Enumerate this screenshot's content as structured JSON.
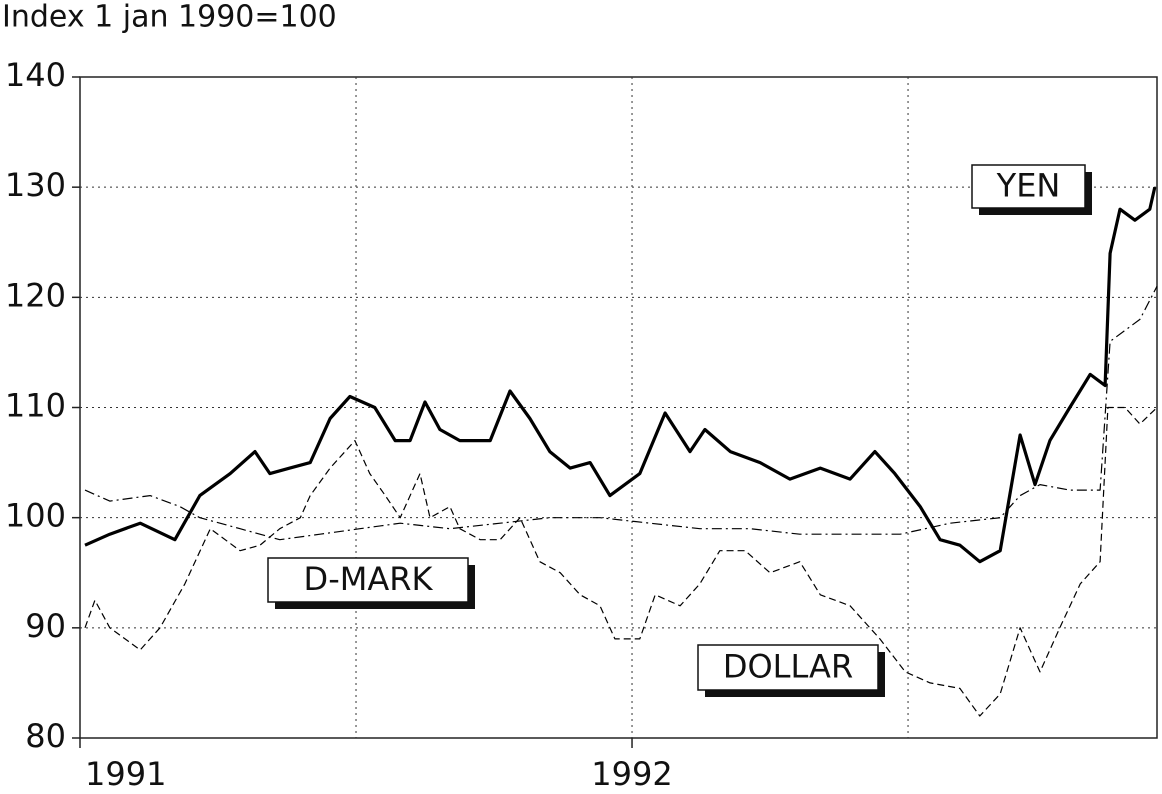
{
  "chart_data": {
    "type": "line",
    "title": "Index 1 jan 1990=100",
    "xlim": [
      1991,
      1992.951
    ],
    "xticks": [
      1991,
      1992
    ],
    "x_gridlines": [
      1991.5,
      1992,
      1992.5
    ],
    "ylim": [
      80,
      140
    ],
    "yticks": [
      80,
      90,
      100,
      110,
      120,
      130,
      140
    ],
    "grid": true,
    "series": [
      {
        "name": "YEN",
        "color": "#000000",
        "style": "thick",
        "x": [
          1991.009,
          1991.054,
          1991.109,
          1991.172,
          1991.217,
          1991.272,
          1991.317,
          1991.344,
          1991.38,
          1991.417,
          1991.453,
          1991.489,
          1991.534,
          1991.571,
          1991.598,
          1991.625,
          1991.652,
          1991.688,
          1991.743,
          1991.779,
          1991.815,
          1991.851,
          1991.888,
          1991.924,
          1991.96,
          1992.014,
          1992.06,
          1992.105,
          1992.132,
          1992.178,
          1992.232,
          1992.286,
          1992.341,
          1992.395,
          1992.44,
          1992.476,
          1992.522,
          1992.558,
          1992.594,
          1992.63,
          1992.667,
          1992.703,
          1992.73,
          1992.757,
          1992.793,
          1992.83,
          1992.857,
          1992.866,
          1992.884,
          1992.911,
          1992.938,
          1992.947
        ],
        "values": [
          97.5,
          98.5,
          99.5,
          98,
          102,
          104,
          106,
          104,
          104.5,
          105,
          109,
          111,
          110,
          107,
          107,
          110.5,
          108,
          107,
          107,
          111.5,
          109,
          106,
          104.5,
          105,
          102,
          104,
          109.5,
          106,
          108,
          106,
          105,
          103.5,
          104.5,
          103.5,
          106,
          104,
          101,
          98,
          97.5,
          96,
          97,
          107.5,
          103,
          107,
          110,
          113,
          112,
          124,
          128,
          127,
          128,
          130
        ]
      },
      {
        "name": "D-MARK",
        "color": "#000000",
        "style": "dashdot",
        "x": [
          1991.009,
          1991.054,
          1991.127,
          1991.181,
          1991.217,
          1991.29,
          1991.362,
          1991.435,
          1991.507,
          1991.58,
          1991.67,
          1991.761,
          1991.851,
          1991.942,
          1992.033,
          1992.123,
          1992.214,
          1992.304,
          1992.395,
          1992.486,
          1992.576,
          1992.667,
          1992.703,
          1992.739,
          1992.793,
          1992.848,
          1992.866,
          1992.92,
          1992.951
        ],
        "values": [
          102.5,
          101.5,
          102,
          101,
          100,
          99,
          98,
          98.5,
          99,
          99.5,
          99,
          99.5,
          100,
          100,
          99.5,
          99,
          99,
          98.5,
          98.5,
          98.5,
          99.5,
          100,
          102,
          103,
          102.5,
          102.5,
          116,
          118,
          121
        ]
      },
      {
        "name": "DOLLAR",
        "color": "#000000",
        "style": "dashed",
        "x": [
          1991.009,
          1991.027,
          1991.054,
          1991.109,
          1991.145,
          1991.19,
          1991.236,
          1991.29,
          1991.326,
          1991.362,
          1991.399,
          1991.417,
          1991.453,
          1991.498,
          1991.525,
          1991.553,
          1991.58,
          1991.616,
          1991.634,
          1991.67,
          1991.688,
          1991.725,
          1991.761,
          1991.797,
          1991.833,
          1991.87,
          1991.906,
          1991.942,
          1991.969,
          1992.014,
          1992.042,
          1992.087,
          1992.123,
          1992.159,
          1992.205,
          1992.25,
          1992.304,
          1992.341,
          1992.395,
          1992.449,
          1992.495,
          1992.54,
          1992.594,
          1992.63,
          1992.667,
          1992.703,
          1992.739,
          1992.775,
          1992.812,
          1992.848,
          1992.862,
          1992.893,
          1992.92,
          1992.951
        ],
        "values": [
          90,
          92.5,
          90,
          88,
          90,
          94,
          99,
          97,
          97.5,
          99,
          100,
          102,
          104.5,
          107,
          104,
          102,
          100,
          104,
          100,
          101,
          99,
          98,
          98,
          100,
          96,
          95,
          93,
          92,
          89,
          89,
          93,
          92,
          94,
          97,
          97,
          95,
          96,
          93,
          92,
          89,
          86,
          85,
          84.5,
          82,
          84,
          90,
          86,
          90,
          94,
          96,
          110,
          110,
          108.5,
          110
        ]
      }
    ]
  }
}
